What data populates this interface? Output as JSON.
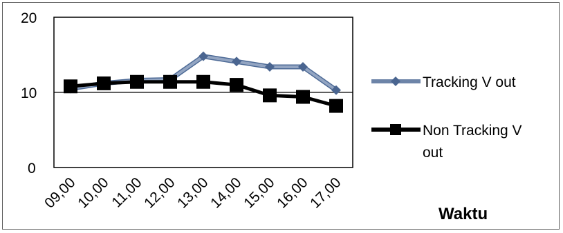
{
  "chart_data": {
    "type": "line",
    "categories": [
      "09,00",
      "10,00",
      "11,00",
      "12,00",
      "13,00",
      "14,00",
      "15,00",
      "16,00",
      "17,00"
    ],
    "series": [
      {
        "name": "Tracking V out",
        "values": [
          10.5,
          11.2,
          11.6,
          11.7,
          14.8,
          14.1,
          13.4,
          13.4,
          10.3
        ],
        "color": "#6d84a8",
        "marker": "diamond"
      },
      {
        "name": "Non Tracking V out",
        "values": [
          10.8,
          11.2,
          11.4,
          11.4,
          11.4,
          11.0,
          9.6,
          9.4,
          8.2
        ],
        "color": "#000000",
        "marker": "square"
      }
    ],
    "legend": [
      "Tracking V out",
      "Non Tracking V out"
    ],
    "yticks": [
      "0",
      "10",
      "20"
    ],
    "ylim": [
      0,
      20
    ],
    "xlabel": "Waktu",
    "ylabel": "",
    "title": "",
    "grid": "horizontal at 10",
    "legend_position": "right"
  }
}
